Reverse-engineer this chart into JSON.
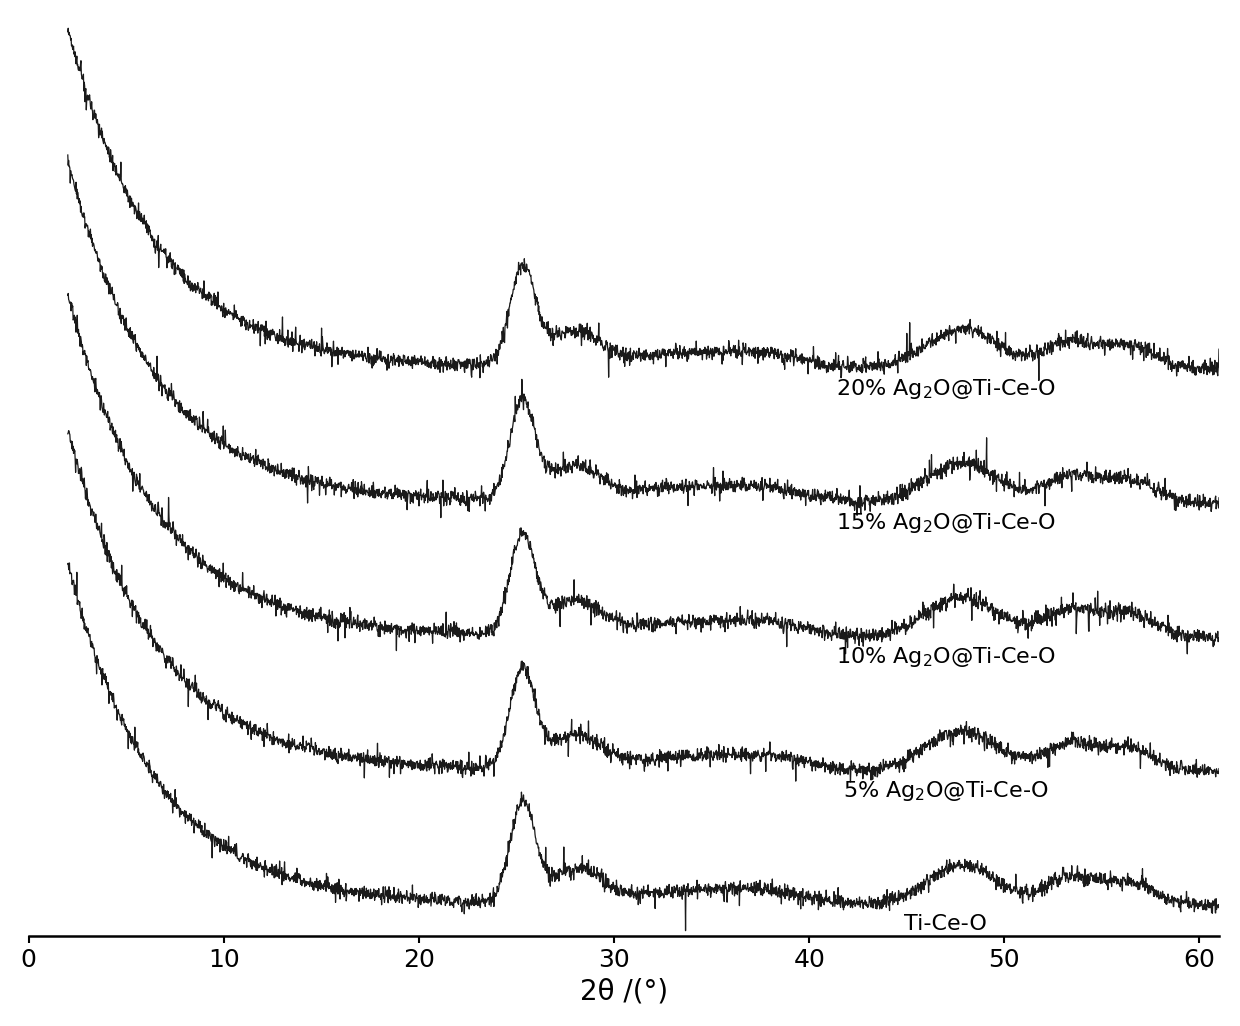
{
  "xlabel": "2θ /(°)",
  "xlim": [
    0,
    61
  ],
  "ylim": [
    -0.5,
    14.5
  ],
  "xticks": [
    0,
    10,
    20,
    30,
    40,
    50,
    60
  ],
  "background_color": "#ffffff",
  "line_color": "#1a1a1a",
  "label_fontsize": 20,
  "tick_fontsize": 18,
  "annotation_fontsize": 16,
  "series_labels": [
    "Ti-Ce-O",
    "5% Ag$_2$O@Ti-Ce-O",
    "10% Ag$_2$O@Ti-Ce-O",
    "15% Ag$_2$O@Ti-Ce-O",
    "20% Ag$_2$O@Ti-Ce-O"
  ],
  "offsets": [
    0.0,
    2.2,
    4.4,
    6.6,
    8.8
  ],
  "noise_scale": 0.055,
  "line_width": 0.9
}
